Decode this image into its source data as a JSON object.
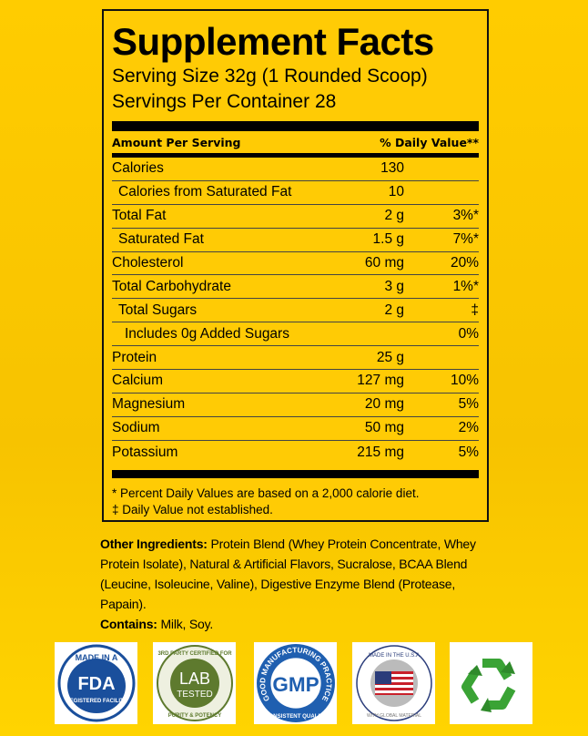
{
  "label": {
    "title": "Supplement Facts",
    "serving_size": "Serving Size 32g (1 Rounded Scoop)",
    "servings_per_container": "Servings Per Container  28",
    "amount_header": "Amount Per Serving",
    "dv_header": "% Daily Value**",
    "rows": [
      {
        "name": "Calories",
        "amount": "130",
        "dv": "",
        "indent": 0
      },
      {
        "name": "Calories from Saturated Fat",
        "amount": "10",
        "dv": "",
        "indent": 1
      },
      {
        "name": "Total Fat",
        "amount": "2 g",
        "dv": "3%*",
        "indent": 0
      },
      {
        "name": "Saturated Fat",
        "amount": "1.5 g",
        "dv": "7%*",
        "indent": 1
      },
      {
        "name": "Cholesterol",
        "amount": "60 mg",
        "dv": "20%",
        "indent": 0
      },
      {
        "name": "Total Carbohydrate",
        "amount": "3 g",
        "dv": "1%*",
        "indent": 0
      },
      {
        "name": "Total Sugars",
        "amount": "2 g",
        "dv": "‡",
        "indent": 1
      },
      {
        "name": "Includes 0g Added Sugars",
        "amount": "",
        "dv": "0%",
        "indent": 2
      },
      {
        "name": "Protein",
        "amount": "25 g",
        "dv": "",
        "indent": 0
      },
      {
        "name": "Calcium",
        "amount": "127 mg",
        "dv": "10%",
        "indent": 0
      },
      {
        "name": "Magnesium",
        "amount": "20 mg",
        "dv": "5%",
        "indent": 0
      },
      {
        "name": "Sodium",
        "amount": "50 mg",
        "dv": "2%",
        "indent": 0
      },
      {
        "name": "Potassium",
        "amount": "215 mg",
        "dv": "5%",
        "indent": 0
      }
    ],
    "footnote1": "* Percent Daily Values are based on a 2,000 calorie diet.",
    "footnote2": "‡ Daily Value not established."
  },
  "ingredients": {
    "other_label": "Other Ingredients:",
    "other_text": " Protein Blend (Whey Protein Concentrate, Whey Protein Isolate), Natural & Artificial Flavors, Sucralose, BCAA Blend (Leucine, Isoleucine, Valine), Digestive Enzyme Blend (Protease, Papain).",
    "contains_label": "Contains:",
    "contains_text": " Milk, Soy."
  },
  "badges": [
    {
      "icon": "fda-registered-badge",
      "text": [
        "MADE IN A",
        "FDA",
        "REGISTERED FACILITY"
      ]
    },
    {
      "icon": "lab-tested-badge",
      "text": [
        "3RD PARTY CERTIFIED FOR",
        "LAB",
        "TESTED",
        "PURITY & POTENCY"
      ]
    },
    {
      "icon": "gmp-badge",
      "text": [
        "GOOD MANUFACTURING PRACTICE",
        "GMP",
        "CONSISTENT QUALITY"
      ]
    },
    {
      "icon": "made-in-usa-badge",
      "text": [
        "MADE IN THE U.S.A",
        "WITH GLOBAL MATERIAL"
      ]
    },
    {
      "icon": "recycle-icon"
    }
  ],
  "colors": {
    "background": "#ffcc00",
    "fda_blue": "#1a4f9c",
    "lab_green": "#5e7a2e",
    "gmp_blue": "#1f5fb0",
    "recycle_green": "#3aa335"
  }
}
